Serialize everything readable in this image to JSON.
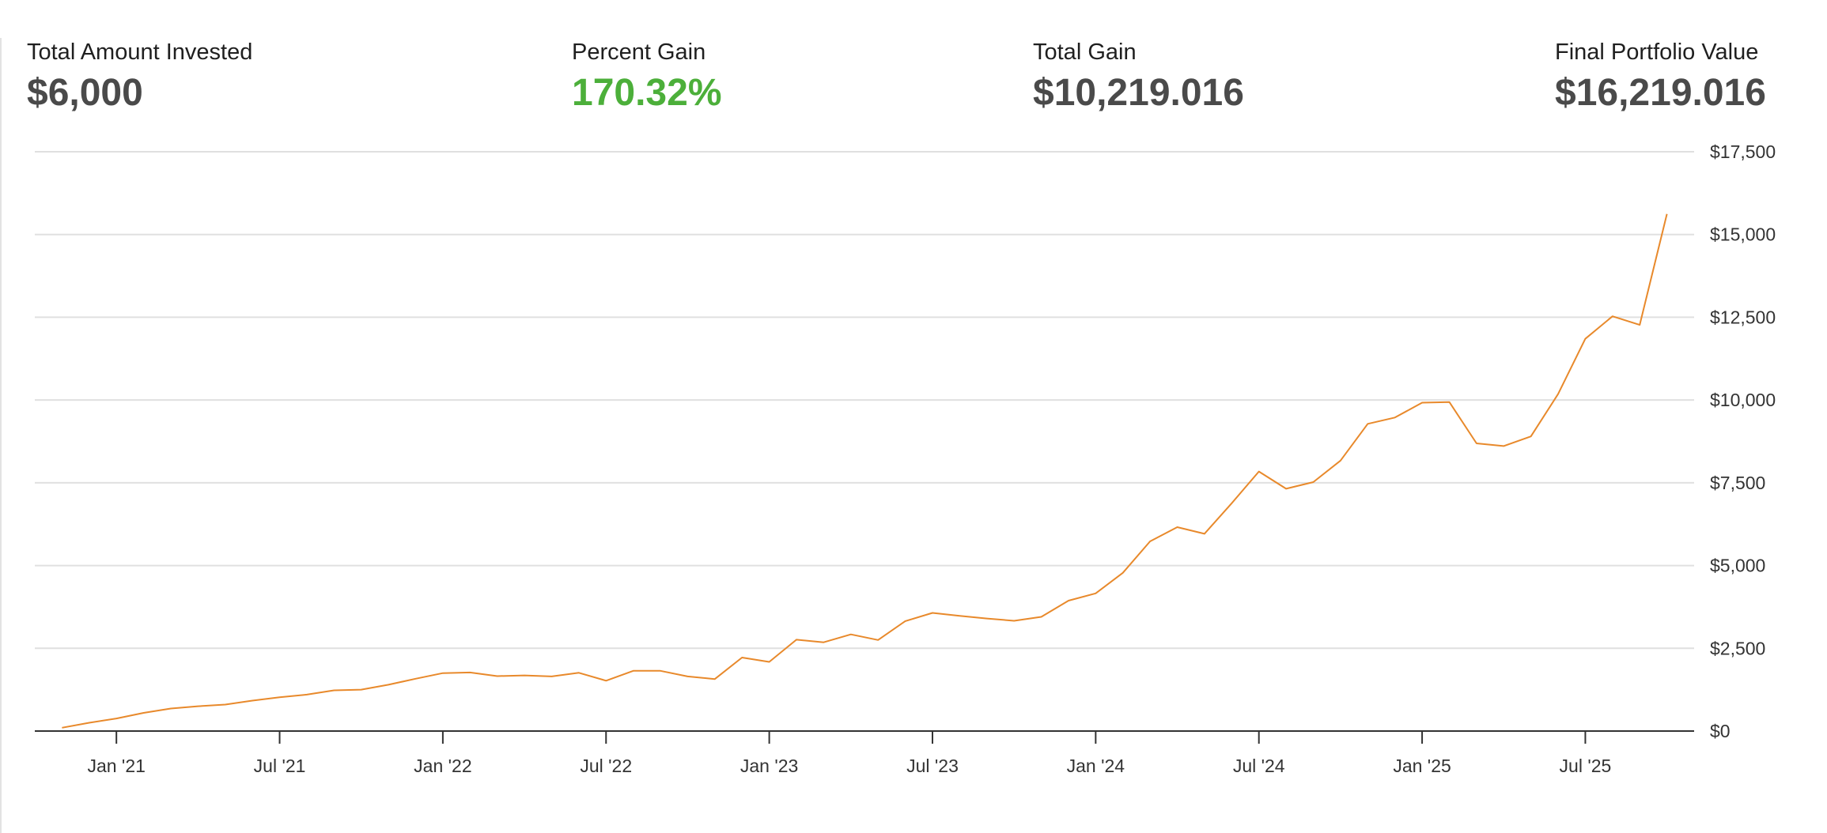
{
  "stats": {
    "invested": {
      "label": "Total Amount Invested",
      "value": "$6,000"
    },
    "percent_gain": {
      "label": "Percent Gain",
      "value": "170.32%"
    },
    "total_gain": {
      "label": "Total Gain",
      "value": "$10,219.016"
    },
    "final_value": {
      "label": "Final Portfolio Value",
      "value": "$16,219.016"
    }
  },
  "colors": {
    "line": "#e8892b",
    "gain_positive": "#4caf3a",
    "grid": "#e0e0e0",
    "axis": "#333333"
  },
  "chart_data": {
    "type": "line",
    "title": "",
    "xlabel": "",
    "ylabel": "",
    "ylim": [
      0,
      17500
    ],
    "y_ticks": [
      0,
      2500,
      5000,
      7500,
      10000,
      12500,
      15000,
      17500
    ],
    "y_tick_labels": [
      "$0",
      "$2,500",
      "$5,000",
      "$7,500",
      "$10,000",
      "$12,500",
      "$15,000",
      "$17,500"
    ],
    "y_axis_position": "right",
    "grid": true,
    "legend": "none",
    "x_ticks": [
      "2021-01",
      "2021-07",
      "2022-01",
      "2022-07",
      "2023-01",
      "2023-07",
      "2024-01",
      "2024-07",
      "2025-01",
      "2025-07"
    ],
    "x_tick_labels": [
      "Jan '21",
      "Jul '21",
      "Jan '22",
      "Jul '22",
      "Jan '23",
      "Jul '23",
      "Jan '24",
      "Jul '24",
      "Jan '25",
      "Jul '25"
    ],
    "xlim": [
      "2020-10",
      "2025-11"
    ],
    "series": [
      {
        "x": [
          "2020-11",
          "2020-12",
          "2021-01",
          "2021-02",
          "2021-03",
          "2021-04",
          "2021-05",
          "2021-06",
          "2021-07",
          "2021-08",
          "2021-09",
          "2021-10",
          "2021-11",
          "2021-12",
          "2022-01",
          "2022-02",
          "2022-03",
          "2022-04",
          "2022-05",
          "2022-06",
          "2022-07",
          "2022-08",
          "2022-09",
          "2022-10",
          "2022-11",
          "2022-12",
          "2023-01",
          "2023-02",
          "2023-03",
          "2023-04",
          "2023-05",
          "2023-06",
          "2023-07",
          "2023-08",
          "2023-09",
          "2023-10",
          "2023-11",
          "2023-12",
          "2024-01",
          "2024-02",
          "2024-03",
          "2024-04",
          "2024-05",
          "2024-06",
          "2024-07",
          "2024-08",
          "2024-09",
          "2024-10",
          "2024-11",
          "2024-12",
          "2025-01",
          "2025-02",
          "2025-03",
          "2025-04",
          "2025-05",
          "2025-06",
          "2025-07",
          "2025-08",
          "2025-09",
          "2025-10"
        ],
        "values": [
          100,
          250,
          380,
          550,
          680,
          750,
          800,
          920,
          1020,
          1100,
          1230,
          1250,
          1400,
          1580,
          1750,
          1770,
          1660,
          1680,
          1650,
          1760,
          1520,
          1820,
          1820,
          1650,
          1570,
          2220,
          2090,
          2760,
          2680,
          2920,
          2750,
          3320,
          3570,
          3480,
          3400,
          3330,
          3450,
          3940,
          4160,
          4780,
          5730,
          6160,
          5960,
          6880,
          7840,
          7320,
          7520,
          8170,
          9280,
          9470,
          9920,
          9940,
          8690,
          8610,
          8900,
          10180,
          11850,
          12530,
          12270,
          15620
        ]
      }
    ]
  }
}
